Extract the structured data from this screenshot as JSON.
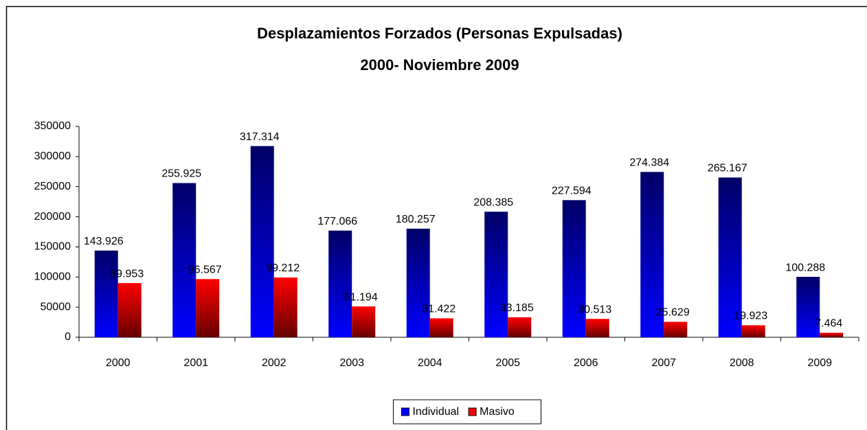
{
  "chart_data": {
    "type": "bar",
    "title": "Desplazamientos Forzados (Personas Expulsadas)",
    "subtitle": "2000- Noviembre 2009",
    "categories": [
      "2000",
      "2001",
      "2002",
      "2003",
      "2004",
      "2005",
      "2006",
      "2007",
      "2008",
      "2009"
    ],
    "series": [
      {
        "name": "Individual",
        "color": "#0000ff",
        "values": [
          143926,
          255925,
          317314,
          177066,
          180257,
          208385,
          227594,
          274384,
          265167,
          100288
        ],
        "value_labels": [
          "143.926",
          "255.925",
          "317.314",
          "177.066",
          "180.257",
          "208.385",
          "227.594",
          "274.384",
          "265.167",
          "100.288"
        ]
      },
      {
        "name": "Masivo",
        "color": "#ff0000",
        "values": [
          89953,
          96567,
          99212,
          51194,
          31422,
          33185,
          30513,
          25629,
          19923,
          7464
        ],
        "value_labels": [
          "89.953",
          "96.567",
          "99.212",
          "51.194",
          "31.422",
          "33.185",
          "30.513",
          "25.629",
          "19.923",
          "7.464"
        ]
      }
    ],
    "ylim": [
      0,
      350000
    ],
    "yticks": [
      0,
      50000,
      100000,
      150000,
      200000,
      250000,
      300000,
      350000
    ],
    "grid": false,
    "legend": "bottom"
  }
}
